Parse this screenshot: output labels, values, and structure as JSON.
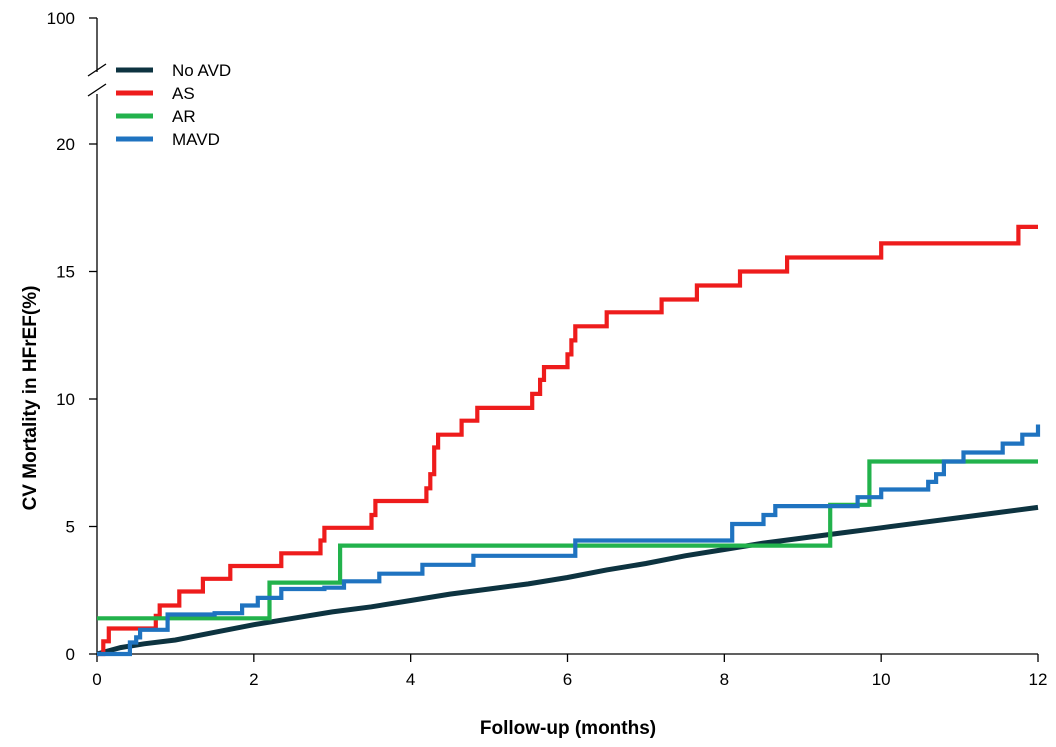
{
  "chart_data": {
    "type": "line",
    "subtype": "kaplan-meier-step",
    "xlabel": "Follow-up (months)",
    "ylabel": "CV Mortality in  HFrEF(%)",
    "xlim": [
      0,
      12
    ],
    "ylim": [
      0,
      100
    ],
    "y_axis_break": {
      "from": 22,
      "to": 100
    },
    "x_ticks": [
      0,
      2,
      4,
      6,
      8,
      10,
      12
    ],
    "y_ticks": [
      0,
      5,
      10,
      15,
      20,
      100
    ],
    "grid": false,
    "legend_position": "top-left",
    "series": [
      {
        "name": "No AVD",
        "color": "#0d3340",
        "x": [
          0,
          0.3,
          0.6,
          1.0,
          1.5,
          2.0,
          2.5,
          3.0,
          3.5,
          4.0,
          4.5,
          5.0,
          5.5,
          6.0,
          6.5,
          7.0,
          7.5,
          8.0,
          8.5,
          9.0,
          9.5,
          10.0,
          10.5,
          11.0,
          11.5,
          12.0
        ],
        "y": [
          0,
          0.25,
          0.4,
          0.55,
          0.85,
          1.15,
          1.4,
          1.65,
          1.85,
          2.1,
          2.35,
          2.55,
          2.75,
          3.0,
          3.3,
          3.55,
          3.85,
          4.1,
          4.35,
          4.55,
          4.75,
          4.95,
          5.15,
          5.35,
          5.55,
          5.75
        ]
      },
      {
        "name": "AS",
        "color": "#ee1c1c",
        "x": [
          0,
          0.08,
          0.15,
          0.75,
          0.8,
          1.05,
          1.35,
          1.7,
          1.95,
          2.35,
          2.85,
          2.9,
          3.5,
          3.55,
          4.2,
          4.25,
          4.3,
          4.35,
          4.45,
          4.65,
          4.85,
          5.55,
          5.65,
          5.7,
          5.75,
          6.0,
          6.05,
          6.1,
          6.15,
          6.5,
          7.2,
          7.65,
          8.2,
          8.8,
          10.0,
          11.75,
          12.0
        ],
        "y": [
          0,
          0.5,
          1.0,
          1.5,
          1.9,
          2.45,
          2.95,
          3.45,
          3.45,
          3.95,
          4.45,
          4.95,
          5.45,
          6.0,
          6.5,
          7.05,
          8.1,
          8.6,
          8.6,
          9.15,
          9.65,
          10.2,
          10.75,
          11.25,
          11.25,
          11.75,
          12.3,
          12.85,
          12.85,
          13.4,
          13.9,
          14.45,
          15.0,
          15.55,
          16.1,
          16.75,
          16.75
        ]
      },
      {
        "name": "AR",
        "color": "#22b24c",
        "x": [
          0,
          2.2,
          3.1,
          9.35,
          9.85,
          12.0
        ],
        "y": [
          1.4,
          2.8,
          4.25,
          5.85,
          7.55,
          7.55
        ]
      },
      {
        "name": "MAVD",
        "color": "#1f73c0",
        "x": [
          0,
          0.42,
          0.5,
          0.55,
          0.9,
          1.5,
          1.85,
          2.05,
          2.35,
          2.9,
          3.15,
          3.6,
          4.15,
          4.8,
          6.1,
          8.1,
          8.5,
          8.65,
          9.7,
          10.0,
          10.6,
          10.7,
          10.8,
          11.05,
          11.55,
          11.8,
          12.0
        ],
        "y": [
          0,
          0.45,
          0.65,
          0.95,
          1.55,
          1.6,
          1.9,
          2.2,
          2.55,
          2.6,
          2.85,
          3.15,
          3.5,
          3.85,
          4.45,
          5.1,
          5.45,
          5.8,
          6.15,
          6.45,
          6.75,
          7.05,
          7.55,
          7.9,
          8.25,
          8.6,
          9.0
        ]
      }
    ]
  }
}
